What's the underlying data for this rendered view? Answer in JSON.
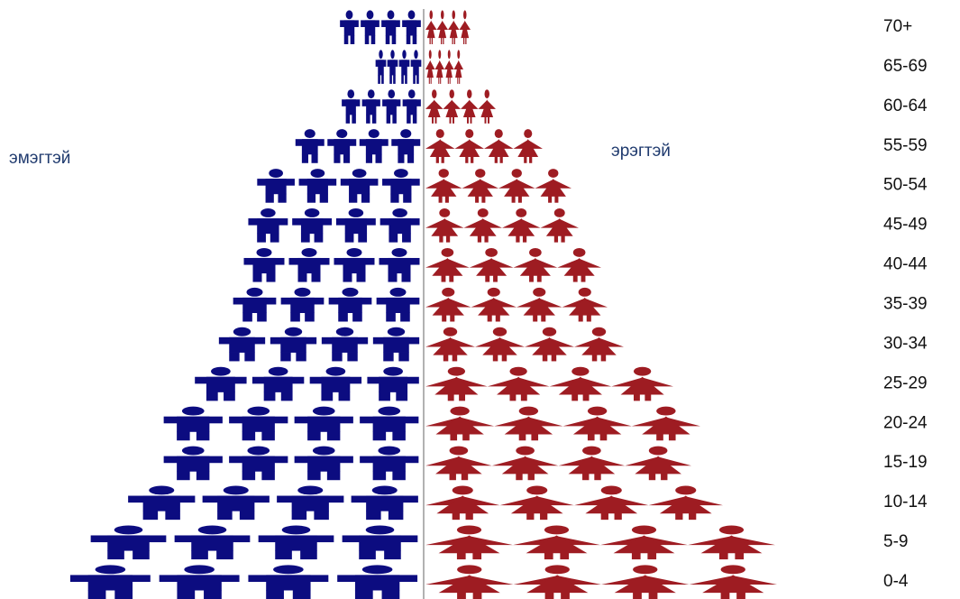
{
  "chart_data": {
    "type": "pictogram-pyramid",
    "categories": [
      "70+",
      "65-69",
      "60-64",
      "55-59",
      "50-54",
      "45-49",
      "40-44",
      "35-39",
      "30-34",
      "25-29",
      "20-24",
      "15-19",
      "10-14",
      "5-9",
      "0-4"
    ],
    "series": [
      {
        "name": "эмэгтэй",
        "color": "#0c0c80",
        "values": [
          92,
          52,
          90,
          142,
          185,
          195,
          200,
          212,
          228,
          255,
          290,
          290,
          330,
          372,
          395
        ]
      },
      {
        "name": "эрэгтэй",
        "color": "#9e1c22",
        "values": [
          50,
          42,
          78,
          130,
          162,
          170,
          195,
          202,
          220,
          275,
          305,
          295,
          330,
          388,
          390
        ]
      }
    ]
  }
}
